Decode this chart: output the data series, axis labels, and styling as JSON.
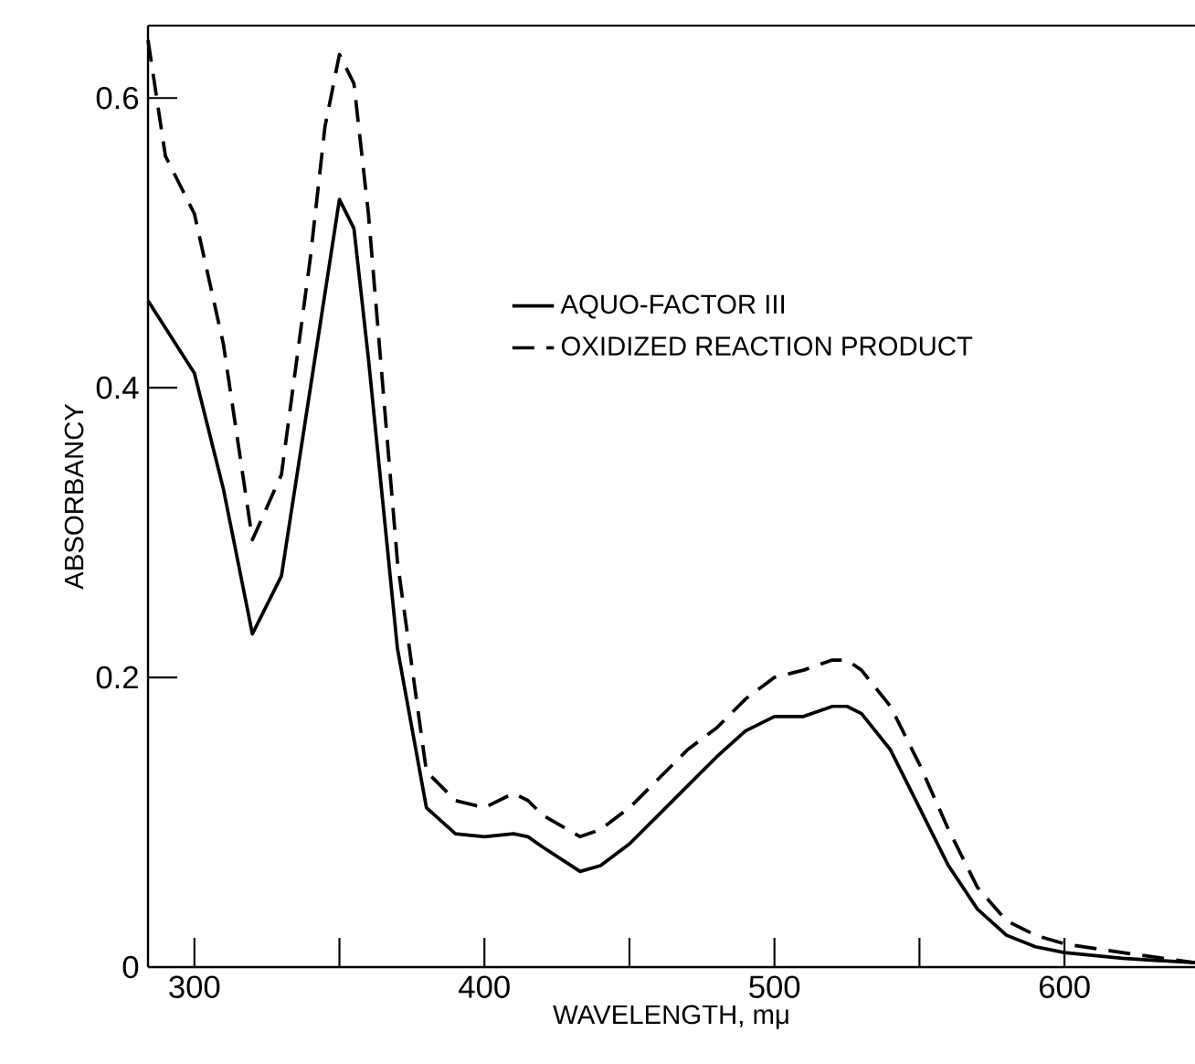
{
  "chart_data": {
    "type": "line",
    "xlabel": "WAVELENGTH, mμ",
    "ylabel": "ABSORBANCY",
    "xlim": [
      284,
      645
    ],
    "ylim": [
      0,
      0.65
    ],
    "xticks": [
      300,
      {
        "value": 350,
        "label": null
      },
      400,
      {
        "value": 450,
        "label": null
      },
      500,
      {
        "value": 550,
        "label": null
      },
      600
    ],
    "yticks": [
      {
        "value": 0,
        "label": "0"
      },
      0.2,
      0.4,
      0.6
    ],
    "legend": "right",
    "grid": false,
    "marker": "none",
    "series": [
      {
        "name": "AQUO-FACTOR III",
        "color": "#000000",
        "line_style": "solid",
        "x": [
          284,
          300,
          310,
          320,
          330,
          340,
          350,
          355,
          360,
          370,
          380,
          390,
          400,
          410,
          415,
          420,
          433,
          440,
          450,
          460,
          470,
          480,
          490,
          500,
          510,
          520,
          525,
          530,
          540,
          550,
          560,
          570,
          580,
          590,
          600,
          620,
          645
        ],
        "values": [
          0.46,
          0.41,
          0.33,
          0.23,
          0.27,
          0.4,
          0.53,
          0.51,
          0.42,
          0.22,
          0.11,
          0.092,
          0.09,
          0.092,
          0.09,
          0.083,
          0.066,
          0.07,
          0.085,
          0.105,
          0.125,
          0.145,
          0.163,
          0.173,
          0.173,
          0.18,
          0.18,
          0.175,
          0.15,
          0.11,
          0.07,
          0.04,
          0.022,
          0.014,
          0.01,
          0.006,
          0.003
        ]
      },
      {
        "name": "OXIDIZED REACTION PRODUCT",
        "color": "#000000",
        "line_style": "dashed",
        "x": [
          284,
          287,
          290,
          300,
          310,
          320,
          330,
          340,
          345,
          350,
          355,
          360,
          370,
          380,
          390,
          400,
          410,
          415,
          420,
          433,
          440,
          450,
          460,
          470,
          480,
          490,
          500,
          510,
          520,
          525,
          530,
          540,
          550,
          560,
          570,
          580,
          590,
          600,
          620,
          645
        ],
        "values": [
          0.64,
          0.6,
          0.56,
          0.52,
          0.43,
          0.295,
          0.34,
          0.49,
          0.58,
          0.63,
          0.61,
          0.52,
          0.28,
          0.135,
          0.115,
          0.11,
          0.12,
          0.115,
          0.105,
          0.09,
          0.095,
          0.11,
          0.13,
          0.15,
          0.165,
          0.185,
          0.2,
          0.205,
          0.212,
          0.212,
          0.205,
          0.18,
          0.14,
          0.095,
          0.055,
          0.032,
          0.022,
          0.016,
          0.01,
          0.003
        ]
      }
    ]
  }
}
